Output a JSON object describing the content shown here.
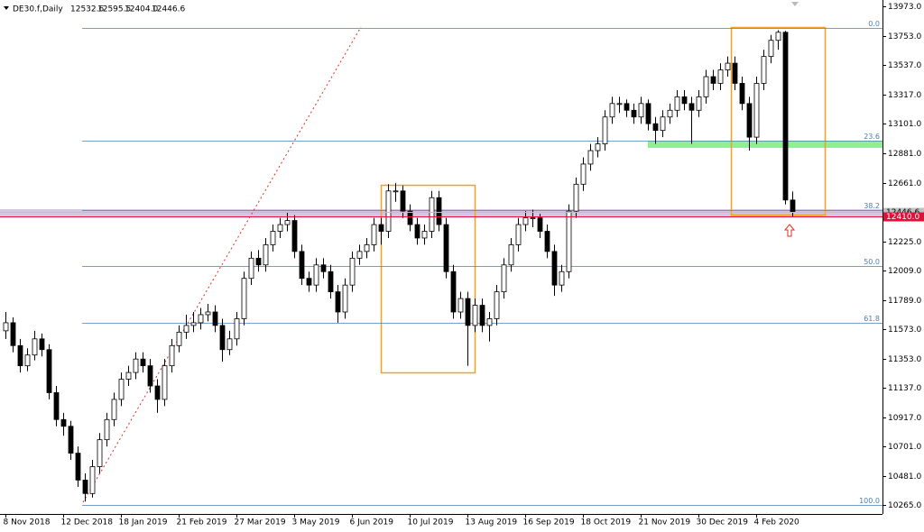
{
  "chart_data": {
    "type": "candlestick",
    "symbol": "DE30.f,Daily",
    "header_values": [
      "12532.6",
      "12595.5",
      "12404.0",
      "12446.6"
    ],
    "ylim": [
      10265,
      13973
    ],
    "yticks": [
      {
        "value": 13973,
        "label": "13973.0"
      },
      {
        "value": 13753,
        "label": "13753.0"
      },
      {
        "value": 13537,
        "label": "13537.0"
      },
      {
        "value": 13317,
        "label": "13317.0"
      },
      {
        "value": 13101,
        "label": "13101.0"
      },
      {
        "value": 12881,
        "label": "12881.0"
      },
      {
        "value": 12661,
        "label": "12661.0"
      },
      {
        "value": 12225,
        "label": "12225.0"
      },
      {
        "value": 12009,
        "label": "12009.0"
      },
      {
        "value": 11789,
        "label": "11789.0"
      },
      {
        "value": 11573,
        "label": "11573.0"
      },
      {
        "value": 11353,
        "label": "11353.0"
      },
      {
        "value": 11137,
        "label": "11137.0"
      },
      {
        "value": 10917,
        "label": "10917.0"
      },
      {
        "value": 10701,
        "label": "10701.0"
      },
      {
        "value": 10481,
        "label": "10481.0"
      },
      {
        "value": 10265,
        "label": "10265.0"
      }
    ],
    "xticks": [
      {
        "value": 0,
        "label": "8 Nov 2018"
      },
      {
        "value": 8,
        "label": "12 Dec 2018"
      },
      {
        "value": 16,
        "label": "18 Jan 2019"
      },
      {
        "value": 24,
        "label": "21 Feb 2019"
      },
      {
        "value": 32,
        "label": "27 Mar 2019"
      },
      {
        "value": 40,
        "label": "3 May 2019"
      },
      {
        "value": 48,
        "label": "6 Jun 2019"
      },
      {
        "value": 56,
        "label": "10 Jul 2019"
      },
      {
        "value": 64,
        "label": "13 Aug 2019"
      },
      {
        "value": 72,
        "label": "16 Sep 2019"
      },
      {
        "value": 80,
        "label": "18 Oct 2019"
      },
      {
        "value": 88,
        "label": "21 Nov 2019"
      },
      {
        "value": 96,
        "label": "30 Dec 2019"
      },
      {
        "value": 104,
        "label": "4 Feb 2020"
      }
    ],
    "color": "#000000",
    "ohlc": [
      [
        11560,
        11700,
        11500,
        11620
      ],
      [
        11620,
        11660,
        11400,
        11450
      ],
      [
        11450,
        11500,
        11250,
        11300
      ],
      [
        11300,
        11430,
        11260,
        11380
      ],
      [
        11380,
        11560,
        11340,
        11500
      ],
      [
        11500,
        11540,
        11370,
        11420
      ],
      [
        11420,
        11460,
        11050,
        11100
      ],
      [
        11100,
        11150,
        10850,
        10900
      ],
      [
        10900,
        10950,
        10780,
        10850
      ],
      [
        10850,
        10890,
        10600,
        10650
      ],
      [
        10650,
        10700,
        10400,
        10450
      ],
      [
        10450,
        10500,
        10290,
        10350
      ],
      [
        10350,
        10600,
        10320,
        10550
      ],
      [
        10550,
        10800,
        10500,
        10750
      ],
      [
        10750,
        10950,
        10700,
        10900
      ],
      [
        10900,
        11100,
        10850,
        11050
      ],
      [
        11050,
        11250,
        11000,
        11200
      ],
      [
        11200,
        11300,
        11150,
        11250
      ],
      [
        11250,
        11400,
        11200,
        11350
      ],
      [
        11350,
        11400,
        11250,
        11300
      ],
      [
        11300,
        11350,
        11100,
        11150
      ],
      [
        11150,
        11200,
        10950,
        11050
      ],
      [
        11050,
        11350,
        11000,
        11300
      ],
      [
        11300,
        11500,
        11250,
        11450
      ],
      [
        11450,
        11600,
        11400,
        11550
      ],
      [
        11550,
        11680,
        11500,
        11600
      ],
      [
        11600,
        11700,
        11550,
        11620
      ],
      [
        11620,
        11730,
        11570,
        11680
      ],
      [
        11680,
        11760,
        11630,
        11700
      ],
      [
        11700,
        11750,
        11550,
        11600
      ],
      [
        11600,
        11650,
        11330,
        11420
      ],
      [
        11420,
        11560,
        11380,
        11500
      ],
      [
        11500,
        11700,
        11450,
        11650
      ],
      [
        11650,
        12000,
        11600,
        11950
      ],
      [
        11950,
        12150,
        11900,
        12100
      ],
      [
        12100,
        12160,
        12000,
        12050
      ],
      [
        12050,
        12250,
        12000,
        12200
      ],
      [
        12200,
        12350,
        12150,
        12300
      ],
      [
        12300,
        12400,
        12250,
        12350
      ],
      [
        12350,
        12440,
        12300,
        12380
      ],
      [
        12380,
        12420,
        12100,
        12150
      ],
      [
        12150,
        12200,
        11900,
        11950
      ],
      [
        11950,
        12000,
        11850,
        11900
      ],
      [
        11900,
        12100,
        11850,
        12050
      ],
      [
        12050,
        12100,
        11950,
        12000
      ],
      [
        12000,
        12050,
        11800,
        11850
      ],
      [
        11850,
        11900,
        11620,
        11700
      ],
      [
        11700,
        11950,
        11650,
        11900
      ],
      [
        11900,
        12150,
        11850,
        12100
      ],
      [
        12100,
        12200,
        12050,
        12150
      ],
      [
        12150,
        12250,
        12100,
        12200
      ],
      [
        12200,
        12400,
        12150,
        12350
      ],
      [
        12350,
        12400,
        12200,
        12300
      ],
      [
        12300,
        12650,
        12250,
        12600
      ],
      [
        12600,
        12660,
        12520,
        12600
      ],
      [
        12600,
        12640,
        12400,
        12450
      ],
      [
        12450,
        12500,
        12300,
        12350
      ],
      [
        12350,
        12400,
        12200,
        12250
      ],
      [
        12250,
        12350,
        12200,
        12300
      ],
      [
        12300,
        12600,
        12250,
        12550
      ],
      [
        12550,
        12600,
        12300,
        12350
      ],
      [
        12350,
        12400,
        11950,
        12000
      ],
      [
        12000,
        12050,
        11650,
        11700
      ],
      [
        11700,
        11850,
        11650,
        11800
      ],
      [
        11800,
        11850,
        11300,
        11600
      ],
      [
        11600,
        11800,
        11550,
        11750
      ],
      [
        11750,
        11800,
        11550,
        11600
      ],
      [
        11600,
        11700,
        11480,
        11650
      ],
      [
        11650,
        11900,
        11600,
        11850
      ],
      [
        11850,
        12100,
        11800,
        12050
      ],
      [
        12050,
        12250,
        12000,
        12200
      ],
      [
        12200,
        12400,
        12150,
        12350
      ],
      [
        12350,
        12450,
        12300,
        12400
      ],
      [
        12400,
        12460,
        12330,
        12400
      ],
      [
        12400,
        12430,
        12250,
        12300
      ],
      [
        12300,
        12350,
        12100,
        12150
      ],
      [
        12150,
        12200,
        11820,
        11900
      ],
      [
        11900,
        12050,
        11850,
        12000
      ],
      [
        12000,
        12500,
        11950,
        12450
      ],
      [
        12450,
        12700,
        12400,
        12650
      ],
      [
        12650,
        12850,
        12600,
        12800
      ],
      [
        12800,
        12950,
        12750,
        12900
      ],
      [
        12900,
        13000,
        12850,
        12950
      ],
      [
        12950,
        13200,
        12900,
        13150
      ],
      [
        13150,
        13300,
        13100,
        13250
      ],
      [
        13250,
        13300,
        13180,
        13250
      ],
      [
        13250,
        13280,
        13150,
        13200
      ],
      [
        13200,
        13250,
        13100,
        13150
      ],
      [
        13150,
        13300,
        13100,
        13250
      ],
      [
        13250,
        13280,
        13050,
        13100
      ],
      [
        13100,
        13150,
        12950,
        13050
      ],
      [
        13050,
        13200,
        13000,
        13150
      ],
      [
        13150,
        13250,
        13100,
        13200
      ],
      [
        13200,
        13350,
        13150,
        13300
      ],
      [
        13300,
        13350,
        13200,
        13250
      ],
      [
        13250,
        13300,
        12950,
        13200
      ],
      [
        13200,
        13350,
        13150,
        13300
      ],
      [
        13300,
        13500,
        13250,
        13450
      ],
      [
        13450,
        13500,
        13350,
        13400
      ],
      [
        13400,
        13550,
        13350,
        13500
      ],
      [
        13500,
        13600,
        13450,
        13550
      ],
      [
        13550,
        13600,
        13350,
        13400
      ],
      [
        13400,
        13450,
        13200,
        13250
      ],
      [
        13250,
        13300,
        12900,
        13000
      ],
      [
        13000,
        13450,
        12950,
        13400
      ],
      [
        13400,
        13650,
        13350,
        13600
      ],
      [
        13600,
        13760,
        13550,
        13720
      ],
      [
        13720,
        13795,
        13650,
        13780
      ],
      [
        13780,
        13790,
        12500,
        12532.6
      ],
      [
        12532.6,
        12595.5,
        12404.0,
        12446.6
      ]
    ],
    "fib_levels": [
      {
        "ratio": {
          "value": 0,
          "label": "0.0"
        },
        "price": 13814
      },
      {
        "ratio": 23.6,
        "price": 12976
      },
      {
        "ratio": 38.2,
        "price": 12458
      },
      {
        "ratio": {
          "value": 50,
          "label": "50.0"
        },
        "price": 12040
      },
      {
        "ratio": 61.8,
        "price": 11621
      },
      {
        "ratio": {
          "value": 100,
          "label": "100.0"
        },
        "price": 10265
      }
    ],
    "fib_color": "#4a7fb5",
    "price_tags": [
      {
        "value": 12446.6,
        "color": "#c0c0c0",
        "text_color": "#000000"
      },
      {
        "value": {
          "value": 12410,
          "label": "12410.0"
        },
        "color": "#e0103a",
        "text_color": "#ffffff"
      }
    ]
  }
}
